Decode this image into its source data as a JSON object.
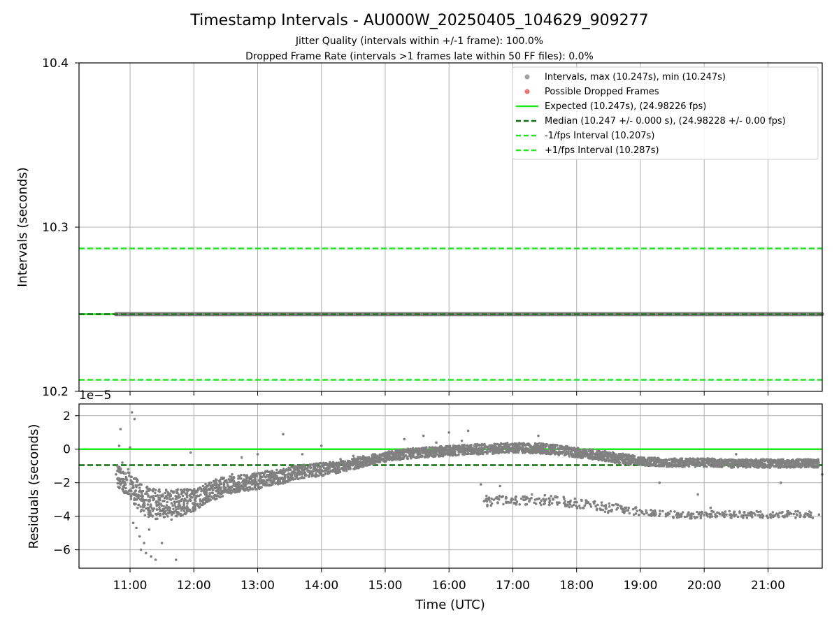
{
  "chart_data": [
    {
      "type": "scatter",
      "title": "Timestamp Intervals - AU000W_20250405_104629_909277",
      "subtitle_lines": [
        "Jitter Quality (intervals within +/-1 frame): 100.0%",
        "Dropped Frame Rate (intervals >1 frames late within 50 FF files): 0.0%"
      ],
      "xlabel": "",
      "ylabel": "Intervals (seconds)",
      "ylim": [
        10.2,
        10.4
      ],
      "yticks": [
        "10.2",
        "10.3",
        "10.4"
      ],
      "xlim_hours": [
        10.2,
        21.85
      ],
      "grid": true,
      "legend_position": "top-right",
      "legend": [
        {
          "label": "Intervals, max (10.247s), min (10.247s)",
          "marker": "dot",
          "color": "#a0a0a0"
        },
        {
          "label": "Possible Dropped Frames",
          "marker": "dot",
          "color": "#f07070"
        },
        {
          "label": "Expected (10.247s), (24.98226 fps)",
          "marker": "solid",
          "color": "#1ee81e"
        },
        {
          "label": "Median (10.247 +/- 0.000 s), (24.98228 +/- 0.00 fps)",
          "marker": "dashed",
          "color": "#0a6f0a"
        },
        {
          "label": "-1/fps Interval (10.207s)",
          "marker": "dashed",
          "color": "#1ee81e"
        },
        {
          "label": "+1/fps Interval (10.287s)",
          "marker": "dashed",
          "color": "#1ee81e"
        }
      ],
      "series": [
        {
          "name": "Intervals",
          "x_range_hours": [
            10.78,
            21.85
          ],
          "y": 10.247,
          "color": "#808080"
        }
      ],
      "hlines": [
        {
          "y": 10.247,
          "style": "solid",
          "color": "#1ee81e"
        },
        {
          "y": 10.247,
          "style": "dashed",
          "color": "#0a6f0a"
        },
        {
          "y": 10.207,
          "style": "dashed",
          "color": "#1ee81e"
        },
        {
          "y": 10.287,
          "style": "dashed",
          "color": "#1ee81e"
        }
      ]
    },
    {
      "type": "scatter",
      "xlabel": "Time (UTC)",
      "ylabel": "Residuals (seconds)",
      "y_offset_label": "1e−5",
      "ylim": [
        -7.1,
        2.7
      ],
      "yticks": [
        "2",
        "0",
        "−2",
        "−4",
        "−6"
      ],
      "xticks": [
        "11:00",
        "12:00",
        "13:00",
        "14:00",
        "15:00",
        "16:00",
        "17:00",
        "18:00",
        "19:00",
        "20:00",
        "21:00"
      ],
      "xlim_hours": [
        10.2,
        21.85
      ],
      "grid": true,
      "hlines": [
        {
          "y": 0,
          "style": "solid",
          "color": "#1ee81e"
        },
        {
          "y": -0.95,
          "style": "dashed",
          "color": "#0a6f0a"
        }
      ],
      "series": [
        {
          "name": "Residuals",
          "color": "#808080",
          "points": [
            [
              10.78,
              -1.5
            ],
            [
              10.8,
              -1.0
            ],
            [
              10.83,
              0.2
            ],
            [
              10.85,
              1.2
            ],
            [
              10.88,
              -0.8
            ],
            [
              10.9,
              -1.8
            ],
            [
              10.93,
              -2.1
            ],
            [
              10.97,
              -1.2
            ],
            [
              11.0,
              0.1
            ],
            [
              11.02,
              -2.5
            ],
            [
              11.03,
              2.2
            ],
            [
              11.05,
              -4.4
            ],
            [
              11.07,
              1.8
            ],
            [
              11.08,
              -3.0
            ],
            [
              11.1,
              -4.7
            ],
            [
              11.12,
              -3.5
            ],
            [
              11.15,
              -5.2
            ],
            [
              11.17,
              -6.0
            ],
            [
              11.2,
              -2.8
            ],
            [
              11.22,
              -5.6
            ],
            [
              11.25,
              -6.2
            ],
            [
              11.28,
              -3.3
            ],
            [
              11.3,
              -4.8
            ],
            [
              11.33,
              -6.4
            ],
            [
              11.36,
              -2.5
            ],
            [
              11.4,
              -6.6
            ],
            [
              11.42,
              -3.6
            ],
            [
              11.45,
              -3.0
            ],
            [
              11.5,
              -5.6
            ],
            [
              11.55,
              -3.8
            ],
            [
              11.6,
              -2.7
            ],
            [
              11.65,
              -4.2
            ],
            [
              11.7,
              -3.2
            ],
            [
              11.72,
              -6.6
            ],
            [
              11.75,
              -2.4
            ],
            [
              11.8,
              -3.5
            ],
            [
              11.85,
              -3.1
            ],
            [
              11.9,
              -3.7
            ],
            [
              11.95,
              -0.2
            ],
            [
              12.0,
              -3.3
            ],
            [
              12.05,
              -2.8
            ],
            [
              12.1,
              -3.0
            ],
            [
              12.15,
              -3.2
            ],
            [
              12.2,
              -2.6
            ],
            [
              12.25,
              -2.7
            ],
            [
              12.3,
              -2.2
            ],
            [
              12.35,
              -2.5
            ],
            [
              12.4,
              -1.9
            ],
            [
              12.45,
              -1.7
            ],
            [
              12.5,
              -2.3
            ],
            [
              12.55,
              -1.8
            ],
            [
              12.6,
              -1.5
            ],
            [
              12.65,
              -2.2
            ],
            [
              12.7,
              -1.6
            ],
            [
              12.75,
              -0.5
            ],
            [
              12.8,
              -2.0
            ],
            [
              12.85,
              -1.9
            ],
            [
              12.9,
              -1.6
            ],
            [
              13.0,
              -0.3
            ],
            [
              13.05,
              -2.0
            ],
            [
              13.1,
              -1.9
            ],
            [
              13.2,
              -1.6
            ],
            [
              13.3,
              -1.4
            ],
            [
              13.4,
              0.9
            ],
            [
              13.5,
              -1.5
            ],
            [
              13.6,
              -1.2
            ],
            [
              13.7,
              -0.3
            ],
            [
              13.8,
              -1.3
            ],
            [
              13.9,
              -1.0
            ],
            [
              14.0,
              0.2
            ],
            [
              14.05,
              -1.3
            ],
            [
              14.1,
              -0.9
            ],
            [
              14.2,
              -1.1
            ],
            [
              14.3,
              -0.6
            ],
            [
              14.4,
              -1.0
            ],
            [
              14.5,
              -0.4
            ],
            [
              14.6,
              -0.8
            ],
            [
              14.7,
              -0.6
            ],
            [
              14.8,
              -0.5
            ],
            [
              14.9,
              -0.7
            ],
            [
              15.0,
              -0.4
            ],
            [
              15.1,
              -0.2
            ],
            [
              15.2,
              -0.4
            ],
            [
              15.3,
              0.6
            ],
            [
              15.4,
              -0.3
            ],
            [
              15.5,
              -0.2
            ],
            [
              15.6,
              0.8
            ],
            [
              15.7,
              -0.2
            ],
            [
              15.8,
              0.4
            ],
            [
              15.9,
              -0.1
            ],
            [
              16.0,
              1.0
            ],
            [
              16.1,
              0.1
            ],
            [
              16.2,
              0.5
            ],
            [
              16.3,
              1.1
            ],
            [
              16.4,
              -0.2
            ],
            [
              16.5,
              -2.1
            ],
            [
              16.55,
              -3.1
            ],
            [
              16.6,
              -3.4
            ],
            [
              16.7,
              0.2
            ],
            [
              16.8,
              -2.2
            ],
            [
              16.9,
              -3.2
            ],
            [
              17.0,
              -3.0
            ],
            [
              17.05,
              -0.2
            ],
            [
              17.1,
              0.3
            ],
            [
              17.2,
              -3.3
            ],
            [
              17.3,
              -2.7
            ],
            [
              17.4,
              0.8
            ],
            [
              17.5,
              -3.1
            ],
            [
              17.6,
              -2.8
            ],
            [
              17.7,
              -3.3
            ],
            [
              17.8,
              0.0
            ],
            [
              17.9,
              -3.3
            ],
            [
              18.0,
              -0.2
            ],
            [
              18.1,
              -3.5
            ],
            [
              18.2,
              -0.5
            ],
            [
              18.3,
              -3.4
            ],
            [
              18.4,
              -0.4
            ],
            [
              18.5,
              -3.7
            ],
            [
              18.6,
              -0.6
            ],
            [
              18.7,
              -3.5
            ],
            [
              18.8,
              -0.9
            ],
            [
              18.9,
              -3.9
            ],
            [
              19.0,
              -0.7
            ],
            [
              19.1,
              -3.8
            ],
            [
              19.2,
              -0.9
            ],
            [
              19.3,
              -2.0
            ],
            [
              19.4,
              -4.0
            ],
            [
              19.5,
              -0.8
            ],
            [
              19.6,
              -3.9
            ],
            [
              19.7,
              -0.9
            ],
            [
              19.8,
              -4.1
            ],
            [
              19.9,
              -2.7
            ],
            [
              20.0,
              -0.9
            ],
            [
              20.1,
              -3.5
            ],
            [
              20.2,
              -4.0
            ],
            [
              20.3,
              -0.8
            ],
            [
              20.4,
              -3.9
            ],
            [
              20.5,
              -0.3
            ],
            [
              20.6,
              -4.0
            ],
            [
              20.7,
              -1.0
            ],
            [
              20.8,
              -3.9
            ],
            [
              20.9,
              -0.9
            ],
            [
              21.0,
              -4.1
            ],
            [
              21.1,
              -0.8
            ],
            [
              21.2,
              -2.0
            ],
            [
              21.3,
              -4.0
            ],
            [
              21.4,
              -0.7
            ],
            [
              21.5,
              -3.8
            ],
            [
              21.6,
              -0.9
            ],
            [
              21.7,
              -4.1
            ],
            [
              21.75,
              -1.0
            ],
            [
              21.8,
              -3.9
            ],
            [
              21.85,
              -1.5
            ]
          ],
          "envelope": [
            [
              10.8,
              -1.6,
              0.6
            ],
            [
              11.0,
              -2.2,
              0.8
            ],
            [
              11.2,
              -3.0,
              0.9
            ],
            [
              11.4,
              -3.3,
              0.9
            ],
            [
              11.6,
              -3.2,
              0.8
            ],
            [
              11.8,
              -3.2,
              0.8
            ],
            [
              12.0,
              -3.0,
              0.7
            ],
            [
              12.2,
              -2.6,
              0.6
            ],
            [
              12.4,
              -2.3,
              0.6
            ],
            [
              12.6,
              -2.1,
              0.5
            ],
            [
              12.8,
              -2.0,
              0.5
            ],
            [
              13.0,
              -1.9,
              0.5
            ],
            [
              13.2,
              -1.7,
              0.45
            ],
            [
              13.4,
              -1.6,
              0.45
            ],
            [
              13.6,
              -1.4,
              0.4
            ],
            [
              13.8,
              -1.3,
              0.4
            ],
            [
              14.0,
              -1.2,
              0.4
            ],
            [
              14.2,
              -1.1,
              0.35
            ],
            [
              14.4,
              -1.0,
              0.35
            ],
            [
              14.6,
              -0.8,
              0.35
            ],
            [
              14.8,
              -0.6,
              0.3
            ],
            [
              15.0,
              -0.45,
              0.3
            ],
            [
              15.2,
              -0.35,
              0.3
            ],
            [
              15.4,
              -0.25,
              0.3
            ],
            [
              15.6,
              -0.2,
              0.3
            ],
            [
              15.8,
              -0.15,
              0.3
            ],
            [
              16.0,
              -0.1,
              0.3
            ],
            [
              16.2,
              -0.05,
              0.3
            ],
            [
              16.4,
              0.0,
              0.3
            ],
            [
              16.6,
              0.0,
              0.3
            ],
            [
              16.8,
              0.05,
              0.3
            ],
            [
              17.0,
              0.1,
              0.3
            ],
            [
              17.2,
              0.05,
              0.3
            ],
            [
              17.4,
              0.05,
              0.3
            ],
            [
              17.6,
              0.0,
              0.3
            ],
            [
              17.8,
              -0.1,
              0.3
            ],
            [
              18.0,
              -0.2,
              0.3
            ],
            [
              18.2,
              -0.3,
              0.3
            ],
            [
              18.4,
              -0.4,
              0.3
            ],
            [
              18.6,
              -0.5,
              0.3
            ],
            [
              18.8,
              -0.6,
              0.3
            ],
            [
              19.0,
              -0.7,
              0.25
            ],
            [
              19.2,
              -0.75,
              0.25
            ],
            [
              19.4,
              -0.8,
              0.25
            ],
            [
              19.6,
              -0.8,
              0.25
            ],
            [
              19.8,
              -0.8,
              0.25
            ],
            [
              20.0,
              -0.8,
              0.25
            ],
            [
              20.2,
              -0.8,
              0.25
            ],
            [
              20.4,
              -0.85,
              0.25
            ],
            [
              20.6,
              -0.85,
              0.25
            ],
            [
              20.8,
              -0.85,
              0.25
            ],
            [
              21.0,
              -0.85,
              0.25
            ],
            [
              21.2,
              -0.85,
              0.25
            ],
            [
              21.4,
              -0.85,
              0.25
            ],
            [
              21.6,
              -0.85,
              0.25
            ],
            [
              21.8,
              -0.85,
              0.25
            ]
          ],
          "lower_band": [
            [
              16.55,
              -3.1,
              0.3
            ],
            [
              16.9,
              -3.0,
              0.3
            ],
            [
              17.3,
              -3.0,
              0.3
            ],
            [
              17.7,
              -3.1,
              0.3
            ],
            [
              18.1,
              -3.3,
              0.3
            ],
            [
              18.5,
              -3.5,
              0.3
            ],
            [
              18.9,
              -3.7,
              0.25
            ],
            [
              19.3,
              -3.85,
              0.2
            ],
            [
              19.7,
              -3.95,
              0.2
            ],
            [
              20.1,
              -3.9,
              0.2
            ],
            [
              20.5,
              -3.9,
              0.2
            ],
            [
              20.9,
              -3.9,
              0.2
            ],
            [
              21.3,
              -3.9,
              0.2
            ],
            [
              21.7,
              -3.9,
              0.2
            ]
          ]
        }
      ]
    }
  ]
}
